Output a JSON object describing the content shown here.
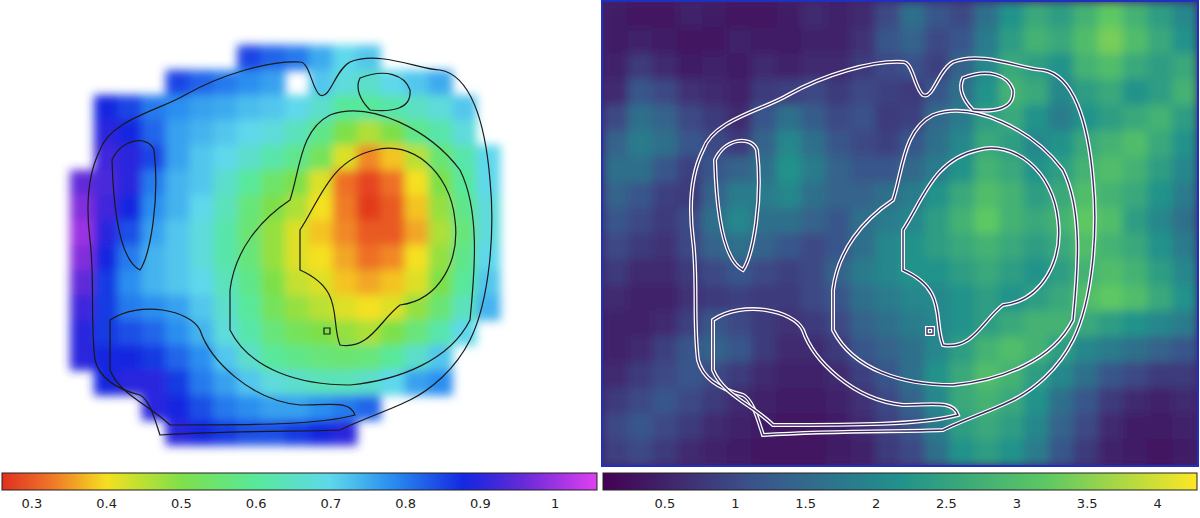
{
  "chart_data": [
    {
      "type": "heatmap",
      "color": "rainbow_r",
      "cells": [
        [
          null,
          null,
          null,
          null,
          null,
          null,
          null,
          0.85,
          0.82,
          0.8,
          0.75,
          0.7,
          0.72,
          null,
          null,
          null,
          null,
          null
        ],
        [
          null,
          null,
          null,
          null,
          0.85,
          0.82,
          0.8,
          0.78,
          0.76,
          null,
          0.72,
          0.68,
          0.66,
          0.7,
          0.72,
          0.75,
          null,
          null
        ],
        [
          null,
          0.88,
          0.85,
          0.8,
          0.78,
          0.76,
          0.75,
          0.73,
          0.72,
          0.7,
          0.66,
          0.6,
          0.6,
          0.62,
          0.65,
          0.68,
          0.72,
          null
        ],
        [
          null,
          0.9,
          0.88,
          0.82,
          0.76,
          0.74,
          0.72,
          0.7,
          0.68,
          0.64,
          0.58,
          0.5,
          0.46,
          0.5,
          0.58,
          0.62,
          0.68,
          null
        ],
        [
          null,
          0.92,
          0.9,
          0.85,
          0.76,
          0.72,
          0.7,
          0.66,
          0.62,
          0.58,
          0.52,
          0.42,
          0.34,
          0.38,
          0.45,
          0.55,
          0.62,
          0.7
        ],
        [
          0.95,
          0.93,
          0.9,
          0.8,
          0.74,
          0.72,
          0.66,
          0.6,
          0.54,
          0.5,
          0.42,
          0.32,
          0.28,
          0.32,
          0.4,
          0.5,
          0.6,
          0.7
        ],
        [
          0.98,
          0.92,
          0.88,
          0.78,
          0.74,
          0.7,
          0.64,
          0.56,
          0.5,
          0.46,
          0.4,
          0.33,
          0.27,
          0.3,
          0.38,
          0.48,
          0.58,
          0.68
        ],
        [
          1.0,
          0.9,
          0.84,
          0.76,
          0.72,
          0.68,
          0.62,
          0.55,
          0.48,
          0.42,
          0.38,
          0.34,
          0.3,
          0.3,
          0.36,
          0.46,
          0.56,
          0.68
        ],
        [
          0.98,
          0.88,
          0.8,
          0.74,
          0.72,
          0.68,
          0.62,
          0.56,
          0.48,
          0.42,
          0.4,
          0.36,
          0.32,
          0.34,
          0.4,
          0.48,
          0.58,
          0.7
        ],
        [
          0.95,
          0.86,
          0.78,
          0.74,
          0.72,
          0.7,
          0.64,
          0.58,
          0.5,
          0.44,
          0.42,
          0.38,
          0.36,
          0.38,
          0.42,
          0.5,
          0.6,
          0.72
        ],
        [
          0.92,
          0.86,
          0.8,
          0.78,
          0.76,
          0.72,
          0.66,
          0.6,
          0.52,
          0.48,
          0.45,
          0.42,
          0.4,
          0.42,
          0.48,
          0.55,
          0.64,
          0.74
        ],
        [
          0.9,
          0.86,
          0.84,
          0.82,
          0.78,
          0.74,
          0.68,
          0.62,
          0.56,
          0.52,
          0.5,
          0.48,
          0.46,
          0.5,
          0.56,
          0.62,
          0.7,
          null
        ],
        [
          0.9,
          0.88,
          0.88,
          0.86,
          0.82,
          0.78,
          0.72,
          0.66,
          0.6,
          0.58,
          0.56,
          0.55,
          0.56,
          0.6,
          0.66,
          0.72,
          null,
          null
        ],
        [
          null,
          0.88,
          0.9,
          0.9,
          0.86,
          0.8,
          0.76,
          0.72,
          0.68,
          0.66,
          0.64,
          0.64,
          0.66,
          0.7,
          0.76,
          0.78,
          null,
          null
        ],
        [
          null,
          null,
          null,
          0.9,
          0.88,
          0.84,
          0.8,
          0.78,
          0.76,
          0.76,
          0.78,
          0.8,
          0.82,
          null,
          null,
          null,
          null,
          null
        ],
        [
          null,
          null,
          null,
          null,
          0.9,
          0.88,
          0.86,
          0.84,
          0.84,
          0.86,
          0.88,
          0.9,
          null,
          null,
          null,
          null,
          null,
          null
        ]
      ],
      "colorbar_range": [
        0.26,
        1.056
      ],
      "colorbar_ticks": [
        0.3,
        0.4,
        0.5,
        0.6,
        0.7,
        0.8,
        0.9,
        1
      ]
    },
    {
      "type": "heatmap",
      "color": "viridis",
      "cells": [
        [
          0.4,
          0.3,
          0.3,
          0.5,
          0.4,
          0.3,
          0.3,
          0.4,
          0.6,
          0.5,
          0.6,
          1.0,
          1.6,
          1.2,
          1.0,
          1.6,
          2.2,
          2.6,
          2.4,
          2.8,
          3.2,
          2.8,
          2.4,
          2.0
        ],
        [
          0.4,
          0.5,
          0.4,
          0.3,
          0.3,
          0.5,
          0.4,
          0.4,
          0.5,
          0.5,
          0.7,
          1.2,
          1.4,
          1.0,
          1.2,
          1.8,
          2.4,
          2.8,
          2.6,
          3.0,
          3.4,
          3.0,
          2.6,
          2.2
        ],
        [
          0.5,
          0.8,
          0.6,
          0.4,
          0.5,
          0.4,
          0.6,
          0.5,
          0.6,
          0.6,
          0.8,
          1.0,
          1.1,
          0.9,
          1.4,
          2.0,
          2.6,
          2.4,
          2.2,
          2.8,
          3.0,
          2.6,
          2.4,
          2.6
        ],
        [
          0.6,
          1.2,
          1.0,
          0.7,
          0.6,
          0.5,
          0.8,
          0.9,
          1.0,
          0.8,
          1.0,
          0.9,
          0.8,
          1.2,
          1.6,
          2.2,
          2.8,
          2.6,
          2.0,
          2.4,
          2.6,
          2.2,
          2.4,
          2.8
        ],
        [
          1.0,
          1.6,
          1.4,
          1.0,
          0.8,
          0.6,
          1.2,
          1.6,
          1.3,
          1.0,
          1.1,
          0.8,
          0.9,
          1.5,
          1.8,
          2.4,
          2.6,
          2.2,
          1.8,
          2.2,
          2.4,
          2.6,
          2.8,
          2.4
        ],
        [
          1.4,
          1.8,
          1.6,
          1.2,
          1.0,
          0.8,
          1.4,
          2.0,
          1.6,
          1.2,
          1.0,
          0.9,
          1.2,
          1.6,
          2.0,
          2.6,
          2.4,
          2.0,
          2.2,
          2.6,
          2.8,
          3.0,
          2.6,
          2.2
        ],
        [
          1.6,
          1.6,
          1.2,
          0.9,
          1.2,
          1.4,
          1.6,
          2.2,
          1.8,
          1.4,
          1.2,
          1.2,
          1.5,
          1.8,
          2.2,
          2.8,
          2.6,
          2.2,
          2.4,
          2.8,
          3.0,
          2.8,
          2.4,
          2.0
        ],
        [
          1.4,
          1.2,
          0.9,
          0.8,
          1.4,
          1.8,
          1.8,
          2.0,
          1.6,
          1.4,
          1.4,
          1.6,
          1.8,
          2.2,
          2.6,
          3.0,
          2.8,
          2.4,
          2.6,
          3.0,
          2.8,
          2.6,
          2.2,
          1.8
        ],
        [
          1.2,
          1.0,
          0.8,
          1.0,
          1.6,
          2.0,
          1.6,
          1.6,
          1.4,
          1.2,
          1.6,
          1.8,
          2.0,
          2.4,
          2.8,
          3.2,
          2.8,
          2.6,
          2.8,
          3.2,
          3.0,
          2.4,
          2.0,
          1.6
        ],
        [
          1.0,
          0.8,
          0.7,
          1.0,
          1.4,
          1.6,
          1.4,
          1.2,
          1.0,
          1.2,
          1.6,
          2.0,
          2.2,
          2.4,
          2.6,
          2.8,
          2.6,
          2.4,
          2.6,
          3.0,
          2.8,
          2.6,
          2.2,
          1.8
        ],
        [
          0.8,
          0.6,
          0.6,
          0.8,
          1.0,
          1.2,
          1.0,
          0.9,
          1.0,
          1.4,
          1.8,
          2.0,
          2.2,
          2.2,
          2.4,
          2.6,
          2.4,
          2.2,
          2.4,
          2.8,
          3.0,
          2.8,
          2.4,
          2.0
        ],
        [
          0.6,
          0.5,
          0.5,
          0.7,
          0.8,
          0.9,
          0.8,
          0.8,
          1.0,
          1.2,
          1.6,
          1.8,
          2.0,
          2.0,
          2.2,
          2.4,
          2.2,
          2.4,
          2.6,
          3.0,
          3.2,
          3.0,
          2.6,
          2.2
        ],
        [
          0.5,
          0.5,
          0.6,
          0.9,
          1.2,
          1.0,
          0.8,
          0.7,
          0.8,
          1.0,
          1.4,
          1.6,
          1.8,
          2.0,
          2.2,
          2.4,
          2.6,
          2.8,
          2.8,
          2.6,
          2.4,
          2.2,
          2.0,
          1.8
        ],
        [
          0.5,
          0.6,
          0.9,
          1.2,
          1.4,
          1.2,
          0.8,
          0.6,
          0.6,
          0.8,
          1.2,
          1.4,
          1.6,
          2.0,
          2.4,
          2.8,
          3.0,
          2.8,
          2.4,
          2.0,
          1.8,
          1.6,
          1.4,
          1.2
        ],
        [
          0.6,
          0.8,
          1.0,
          1.2,
          1.0,
          0.8,
          0.6,
          0.5,
          0.5,
          0.6,
          0.9,
          1.2,
          1.6,
          2.2,
          2.6,
          3.0,
          2.8,
          2.4,
          2.0,
          1.6,
          1.2,
          1.0,
          0.8,
          0.8
        ],
        [
          0.8,
          1.0,
          1.2,
          1.0,
          0.8,
          0.6,
          0.5,
          0.4,
          0.4,
          0.5,
          0.7,
          1.0,
          1.4,
          2.0,
          2.6,
          2.8,
          2.6,
          2.2,
          1.6,
          1.2,
          0.8,
          0.6,
          0.5,
          0.6
        ],
        [
          1.0,
          1.2,
          1.0,
          0.8,
          0.6,
          0.5,
          0.4,
          0.3,
          0.3,
          0.4,
          0.6,
          0.9,
          1.2,
          1.8,
          2.4,
          2.6,
          2.4,
          2.0,
          1.4,
          1.0,
          0.6,
          0.4,
          0.4,
          0.5
        ],
        [
          0.9,
          1.0,
          0.8,
          0.6,
          0.5,
          0.4,
          0.3,
          0.3,
          0.3,
          0.4,
          0.5,
          0.8,
          1.0,
          1.6,
          2.2,
          2.4,
          2.2,
          1.8,
          1.2,
          0.8,
          0.5,
          0.4,
          0.3,
          0.4
        ]
      ],
      "colorbar_range": [
        0.06,
        4.28
      ],
      "colorbar_ticks": [
        0.5,
        1,
        1.5,
        2,
        2.5,
        3,
        3.5,
        4
      ]
    }
  ]
}
